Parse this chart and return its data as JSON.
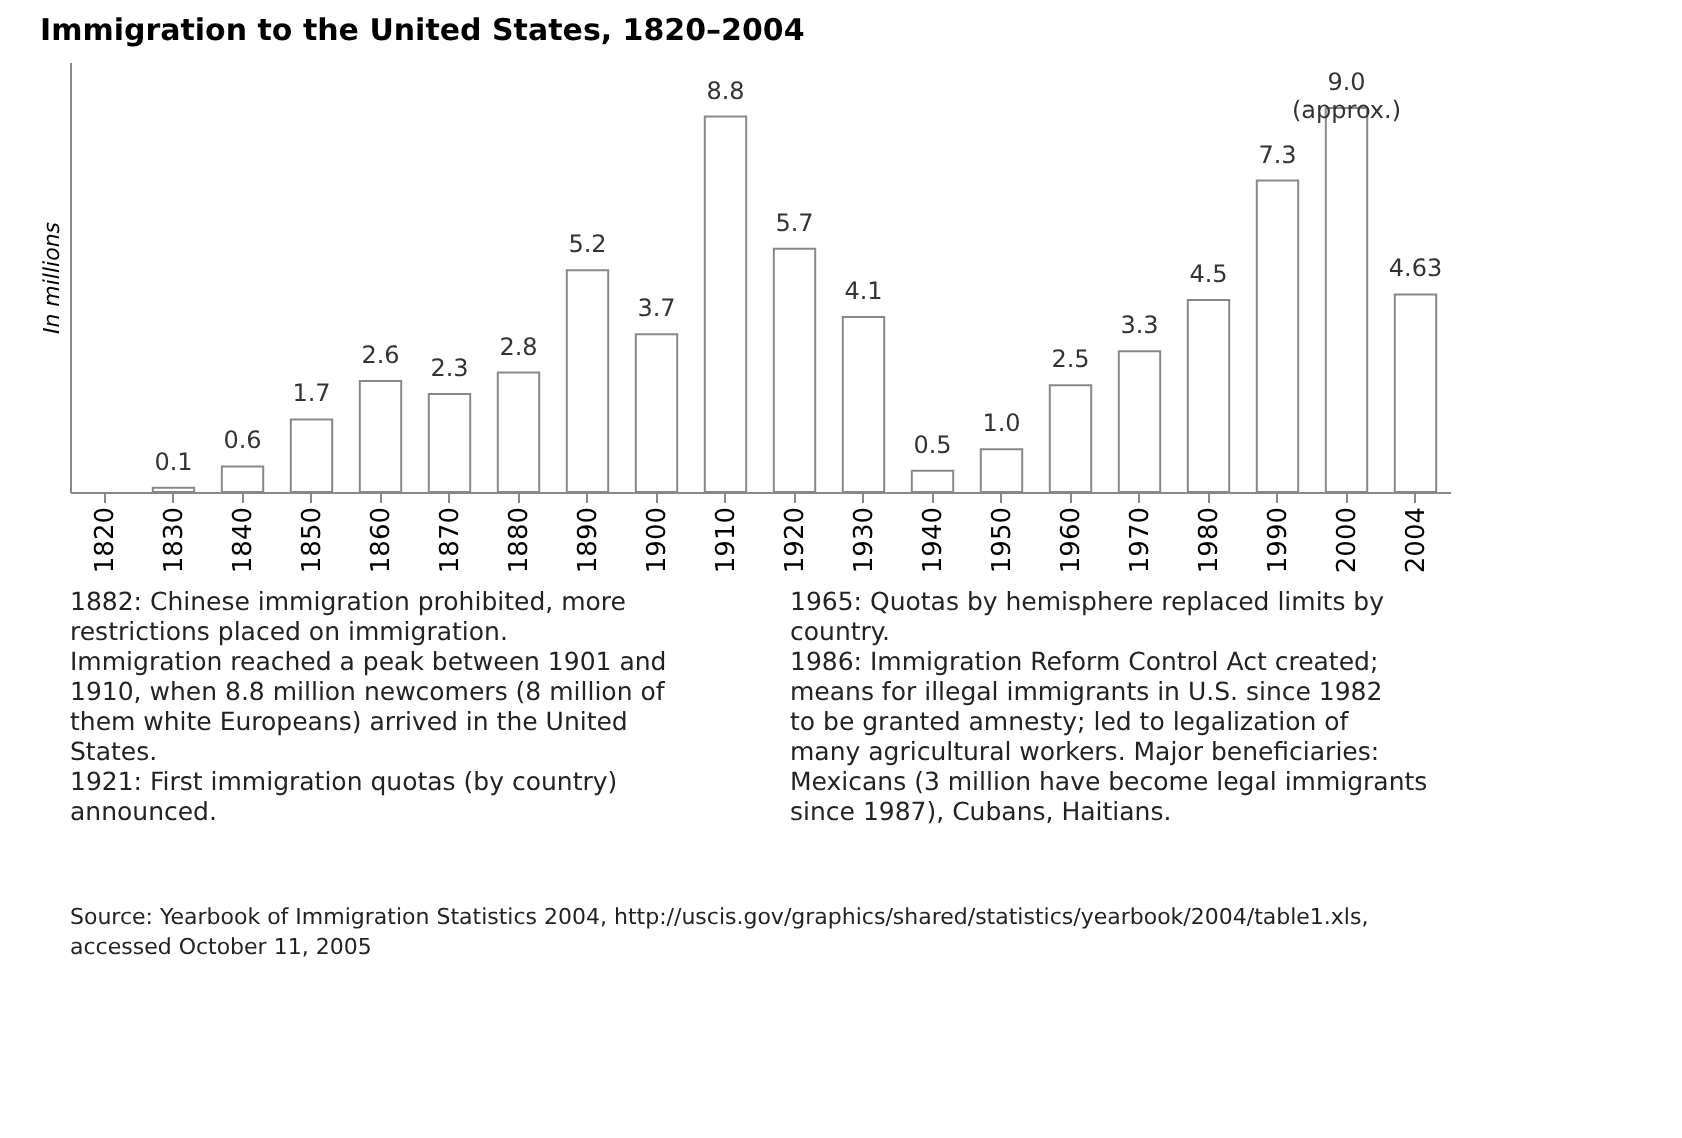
{
  "chart_data": {
    "type": "bar",
    "title": "Immigration to the United States, 1820–2004",
    "ylabel": "In millions",
    "categories": [
      "1820",
      "1830",
      "1840",
      "1850",
      "1860",
      "1870",
      "1880",
      "1890",
      "1900",
      "1910",
      "1920",
      "1930",
      "1940",
      "1950",
      "1960",
      "1970",
      "1980",
      "1990",
      "2000",
      "2004"
    ],
    "values": [
      null,
      0.1,
      0.6,
      1.7,
      2.6,
      2.3,
      2.8,
      5.2,
      3.7,
      8.8,
      5.7,
      4.1,
      0.5,
      1.0,
      2.5,
      3.3,
      4.5,
      7.3,
      9.0,
      4.63
    ],
    "value_labels": [
      null,
      "0.1",
      "0.6",
      "1.7",
      "2.6",
      "2.3",
      "2.8",
      "5.2",
      "3.7",
      "8.8",
      "5.7",
      "4.1",
      "0.5",
      "1.0",
      "2.5",
      "3.3",
      "4.5",
      "7.3",
      "9.0 (approx.)",
      "4.63"
    ],
    "color": "#ffffff",
    "tick_labels": "x",
    "grid": false,
    "annotations": [
      "1882: Chinese immigration prohibited, more restrictions placed on immigration.",
      "Immigration reached a peak between 1901 and 1910, when 8.8 million newcomers (8 million of them white Europeans) arrived in the United States.",
      "1921: First immigration quotas (by country) announced.",
      "1965: Quotas by hemisphere replaced limits by country.",
      "1986: Immigration Reform Control Act created; means for illegal immigrants in U.S. since 1982 to be granted amnesty; led to legalization of many agricultural workers. Major beneficiaries: Mexicans (3 million have become legal immigrants since 1987), Cubans, Haitians.",
      "Source: Yearbook of Immigration Statistics 2004, http://uscis.gov/graphics/shared/statistics/yearbook/2004/table1.xls, accessed October 11, 2005"
    ]
  }
}
